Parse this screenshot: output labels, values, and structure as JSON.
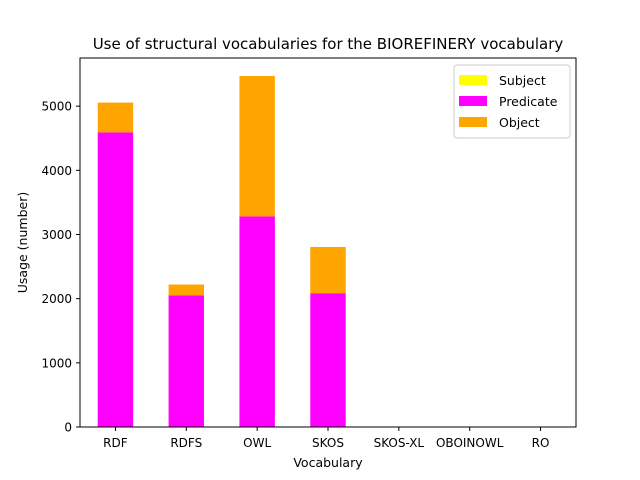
{
  "chart_data": {
    "type": "bar",
    "stacked": true,
    "title": "Use of structural vocabularies for the BIOREFINERY vocabulary",
    "xlabel": "Vocabulary",
    "ylabel": "Usage (number)",
    "categories": [
      "RDF",
      "RDFS",
      "OWL",
      "SKOS",
      "SKOS-XL",
      "OBOINOWL",
      "RO"
    ],
    "ylim": [
      0,
      5750
    ],
    "yticks": [
      0,
      1000,
      2000,
      3000,
      4000,
      5000
    ],
    "grid": false,
    "legend_position": "top-right",
    "series": [
      {
        "name": "Subject",
        "color": "#ffff00",
        "values": [
          0,
          0,
          0,
          0,
          0,
          0,
          0
        ]
      },
      {
        "name": "Predicate",
        "color": "#ff00ff",
        "values": [
          4590,
          2050,
          3280,
          2085,
          0,
          0,
          0
        ]
      },
      {
        "name": "Object",
        "color": "#ffa500",
        "values": [
          465,
          170,
          2190,
          720,
          0,
          0,
          0
        ]
      }
    ]
  }
}
